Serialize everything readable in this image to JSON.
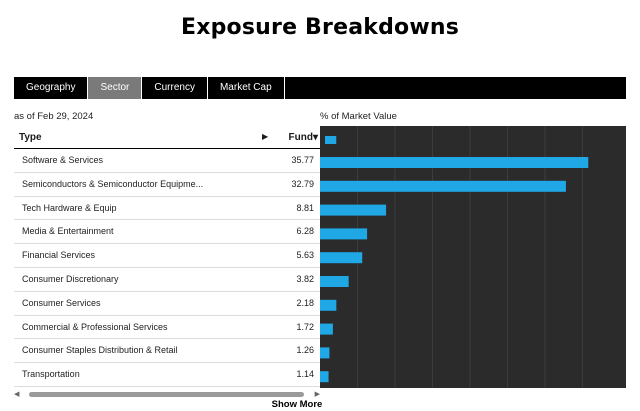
{
  "page": {
    "title": "Exposure Breakdowns"
  },
  "tabs": [
    {
      "label": "Geography",
      "active": false
    },
    {
      "label": "Sector",
      "active": true
    },
    {
      "label": "Currency",
      "active": false
    },
    {
      "label": "Market Cap",
      "active": false
    }
  ],
  "as_of": "as of Feb 29, 2024",
  "market_value_label": "% of Market Value",
  "table": {
    "col_type": "Type",
    "col_fund": "Fund",
    "sort_arrow": "▶",
    "sort_indicator": "▾",
    "rows": [
      {
        "name": "Software & Services",
        "value": "35.77"
      },
      {
        "name": "Semiconductors & Semiconductor Equipme...",
        "value": "32.79"
      },
      {
        "name": "Tech Hardware & Equip",
        "value": "8.81"
      },
      {
        "name": "Media & Entertainment",
        "value": "6.28"
      },
      {
        "name": "Financial Services",
        "value": "5.63"
      },
      {
        "name": "Consumer Discretionary",
        "value": "3.82"
      },
      {
        "name": "Consumer Services",
        "value": "2.18"
      },
      {
        "name": "Commercial & Professional Services",
        "value": "1.72"
      },
      {
        "name": "Consumer Staples Distribution & Retail",
        "value": "1.26"
      },
      {
        "name": "Transportation",
        "value": "1.14"
      }
    ]
  },
  "chart_data": {
    "type": "bar",
    "orientation": "horizontal",
    "header_bar_value": 1.5,
    "categories": [
      "Software & Services",
      "Semiconductors & Semiconductor Equipme...",
      "Tech Hardware & Equip",
      "Media & Entertainment",
      "Financial Services",
      "Consumer Discretionary",
      "Consumer Services",
      "Commercial & Professional Services",
      "Consumer Staples Distribution & Retail",
      "Transportation"
    ],
    "values": [
      35.77,
      32.79,
      8.81,
      6.28,
      5.63,
      3.82,
      2.18,
      1.72,
      1.26,
      1.14
    ],
    "xlim": [
      0,
      40
    ],
    "grid": true,
    "bar_color": "#1fa7e6",
    "background_color": "#2b2b2b"
  },
  "show_more": "Show More",
  "colors": {
    "accent": "#1fa7e6",
    "tab_active": "#7a7a7a",
    "tab_bar": "#000000"
  }
}
